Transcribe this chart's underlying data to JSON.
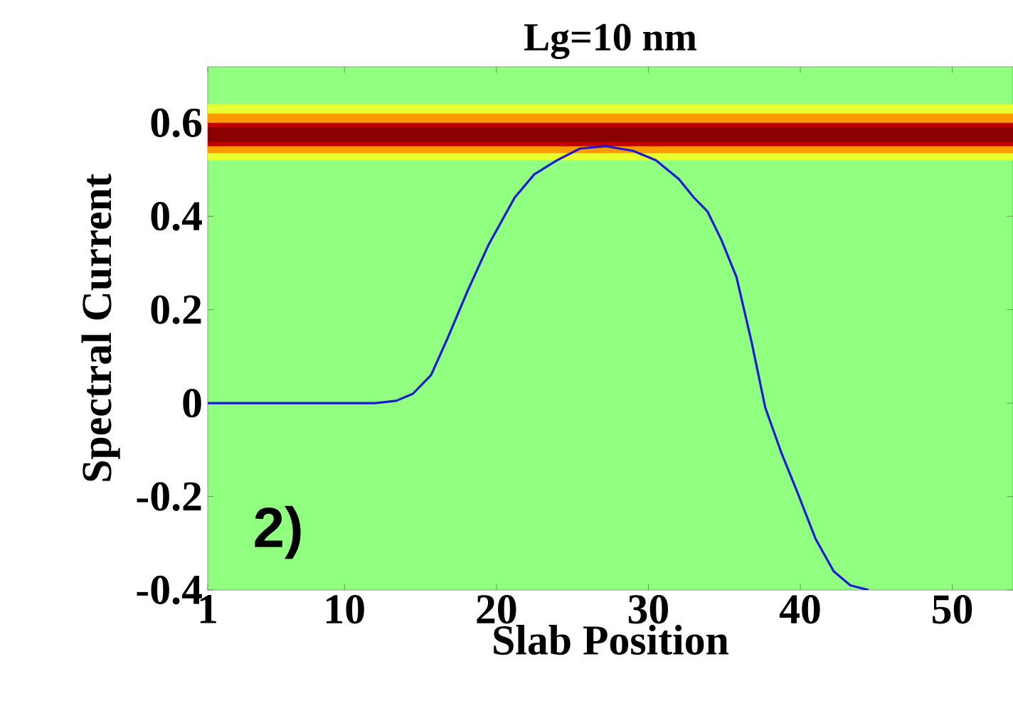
{
  "chart_data": {
    "type": "line",
    "title": "Lg=10 nm",
    "xlabel": "Slab Position",
    "ylabel": "Spectral Current",
    "annotations": [
      "2)"
    ],
    "xlim": [
      1,
      54
    ],
    "ylim": [
      -0.4,
      0.72
    ],
    "xticks": [
      1,
      10,
      20,
      30,
      40,
      50
    ],
    "yticks": [
      -0.4,
      -0.2,
      0,
      0.2,
      0.4,
      0.6
    ],
    "grid": false,
    "marker": "none",
    "line_style": "solid",
    "bands": [
      {
        "axis": "y",
        "from": 0.52,
        "to": 0.64,
        "color": "#e8ff30"
      },
      {
        "axis": "y",
        "from": 0.535,
        "to": 0.62,
        "color": "#ff9a00"
      },
      {
        "axis": "y",
        "from": 0.55,
        "to": 0.6,
        "color": "#c00000"
      },
      {
        "axis": "y",
        "from": 0.56,
        "to": 0.59,
        "color": "#8a0000"
      }
    ],
    "series": [
      {
        "color": "#1a1ad8",
        "x": [
          1,
          5,
          10,
          12,
          13.4,
          14.5,
          15.7,
          16.8,
          18.1,
          19.5,
          21.2,
          22.5,
          24,
          25.5,
          27.2,
          29,
          30.5,
          32,
          33,
          33.9,
          34.8,
          35.8,
          36.8,
          37.7,
          38.8,
          39.8,
          41,
          42.2,
          43.3,
          44.5
        ],
        "values": [
          0,
          0,
          0,
          0,
          0.005,
          0.02,
          0.06,
          0.14,
          0.24,
          0.34,
          0.44,
          0.49,
          0.52,
          0.545,
          0.55,
          0.54,
          0.52,
          0.48,
          0.44,
          0.41,
          0.35,
          0.27,
          0.13,
          -0.01,
          -0.11,
          -0.19,
          -0.29,
          -0.36,
          -0.39,
          -0.4
        ]
      }
    ]
  }
}
